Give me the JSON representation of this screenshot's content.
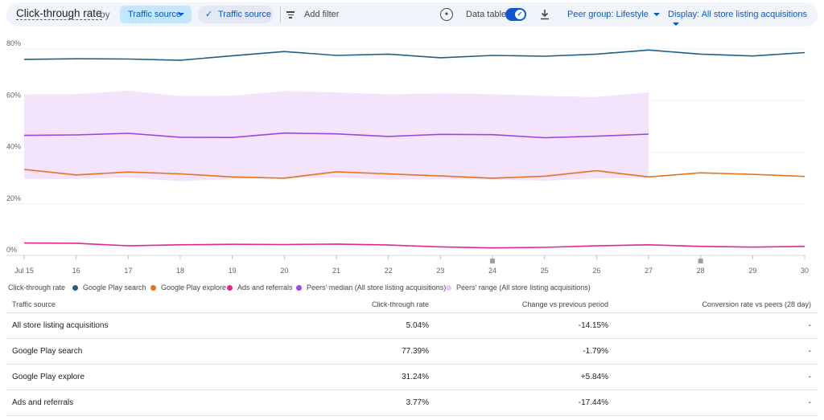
{
  "toolbar": {
    "title": "Click-through rate",
    "by": "by",
    "dimension_button": "Traffic source",
    "active_filter": "Traffic source",
    "add_filter": "Add filter",
    "data_table_label": "Data table",
    "data_table_on": true,
    "peer_group": "Peer group: Lifestyle",
    "display": "Display: All store listing acquisitions"
  },
  "chart_data": {
    "type": "line",
    "categories": [
      "Jul 15",
      "16",
      "17",
      "18",
      "19",
      "20",
      "21",
      "22",
      "23",
      "24",
      "25",
      "26",
      "27",
      "28",
      "29",
      "30"
    ],
    "y_ticks": [
      "0%",
      "20%",
      "40%",
      "60%",
      "80%"
    ],
    "ylim": [
      0,
      80
    ],
    "grid": true,
    "series": [
      {
        "name": "Google Play search",
        "color": "#1f5f87",
        "values": [
          76.0,
          76.2,
          76.1,
          75.6,
          77.4,
          79.0,
          77.5,
          78.0,
          76.6,
          77.5,
          77.2,
          78.0,
          79.6,
          78.0,
          77.3,
          78.6
        ]
      },
      {
        "name": "Google Play explore",
        "color": "#e8711a",
        "values": [
          33.3,
          31.2,
          32.3,
          31.6,
          30.4,
          29.9,
          32.4,
          31.6,
          30.8,
          29.9,
          30.7,
          32.8,
          30.4,
          32.0,
          31.4,
          30.6
        ]
      },
      {
        "name": "Ads and referrals",
        "color": "#e52592",
        "values": [
          4.8,
          4.7,
          3.7,
          4.1,
          4.3,
          4.2,
          4.4,
          4.0,
          3.3,
          2.9,
          3.1,
          3.7,
          4.1,
          3.5,
          3.2,
          3.5
        ]
      },
      {
        "name": "Peers' median (All store listing acquisitions)",
        "color": "#9c44e8",
        "values": [
          46.5,
          46.7,
          47.3,
          45.8,
          45.7,
          47.4,
          47.1,
          46.1,
          46.9,
          46.8,
          45.6,
          46.2,
          47.0,
          null,
          null,
          null
        ]
      }
    ],
    "range": {
      "name": "Peers' range (All store listing acquisitions)",
      "color": "#f3e4fb",
      "upper": [
        62.4,
        62.5,
        63.8,
        61.8,
        61.9,
        63.7,
        63.2,
        62.4,
        62.8,
        62.5,
        61.8,
        61.4,
        63.2,
        null,
        null,
        null
      ],
      "lower": [
        29.6,
        29.6,
        30.2,
        28.7,
        29.6,
        30.1,
        30.1,
        29.4,
        29.5,
        29.4,
        28.9,
        29.8,
        30.2,
        null,
        null,
        null
      ]
    },
    "markers_at": [
      "24",
      "28"
    ]
  },
  "legend": {
    "title": "Click-through rate",
    "items": [
      {
        "label": "Google Play search",
        "color": "#1f5f87"
      },
      {
        "label": "Google Play explore",
        "color": "#e8711a"
      },
      {
        "label": "Ads and referrals",
        "color": "#e52592"
      },
      {
        "label": "Peers' median (All store listing acquisitions)",
        "color": "#9c44e8"
      },
      {
        "label": "Peers' range (All store listing acquisitions)",
        "color": "#e8c9f7"
      }
    ]
  },
  "table": {
    "headers": [
      "Traffic source",
      "Click-through rate",
      "Change vs previous period",
      "Conversion rate vs peers (28 day)"
    ],
    "rows": [
      {
        "source": "All store listing acquisitions",
        "ctr": "5.04%",
        "change": "-14.15%",
        "peers": "-"
      },
      {
        "source": "Google Play search",
        "ctr": "77.39%",
        "change": "-1.79%",
        "peers": "-"
      },
      {
        "source": "Google Play explore",
        "ctr": "31.24%",
        "change": "+5.84%",
        "peers": "-"
      },
      {
        "source": "Ads and referrals",
        "ctr": "3.77%",
        "change": "-17.44%",
        "peers": "-"
      }
    ]
  }
}
